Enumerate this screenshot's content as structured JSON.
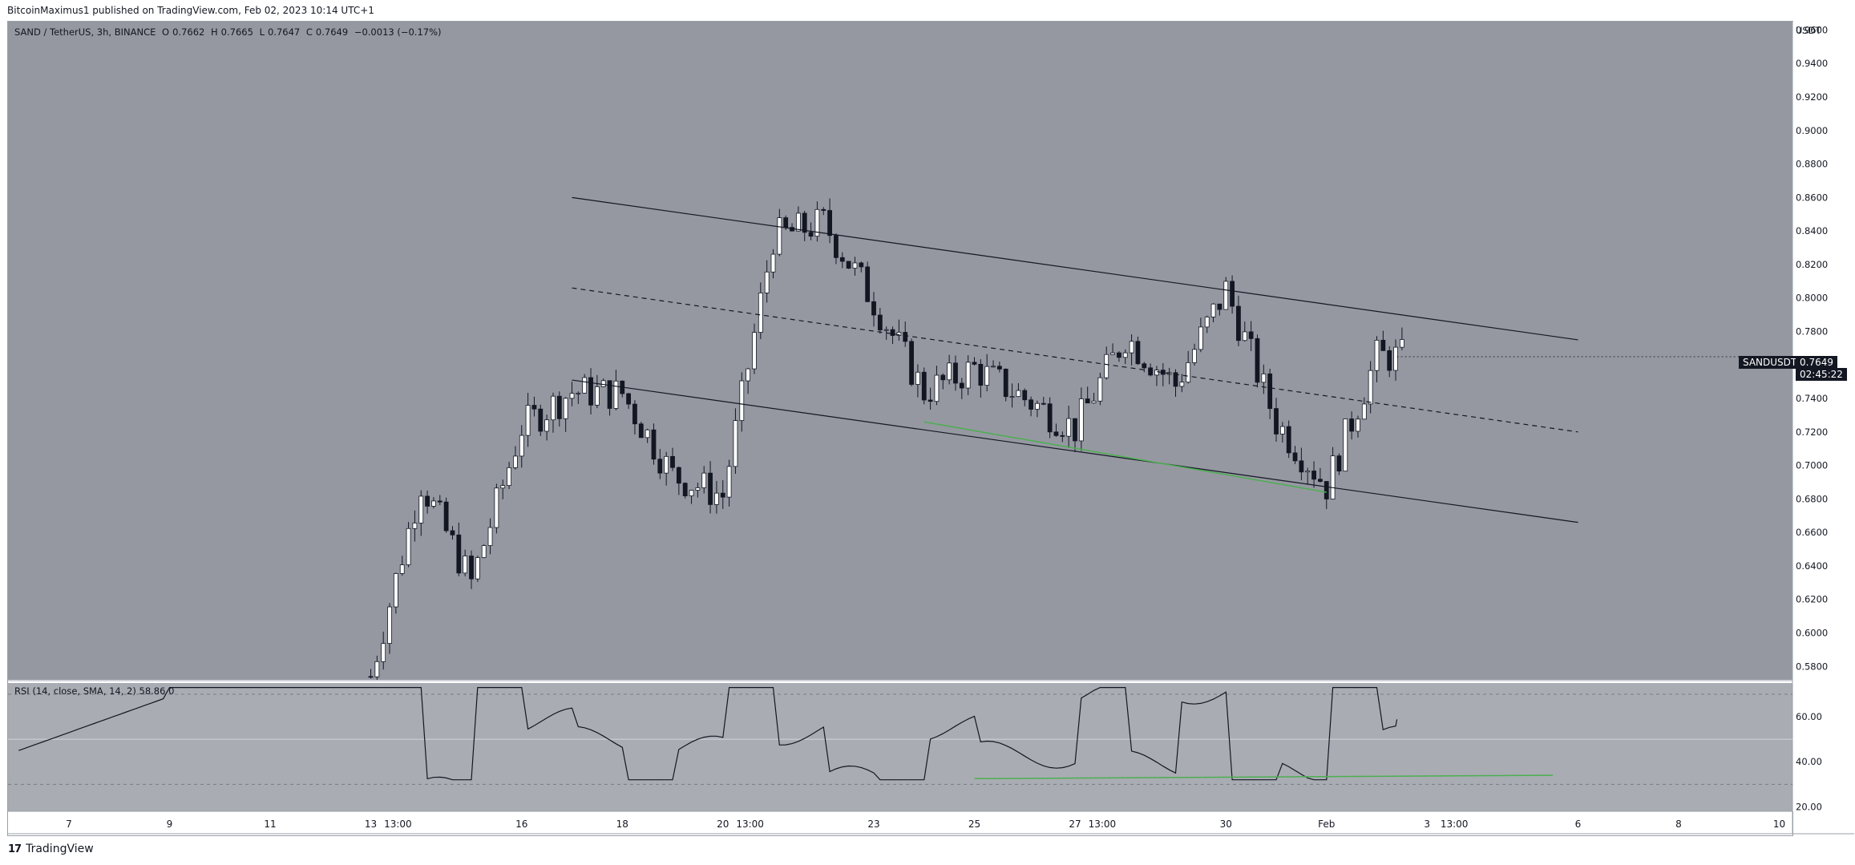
{
  "header": {
    "published": "BitcoinMaximus1 published on TradingView.com, Feb 02, 2023 10:14 UTC+1"
  },
  "symbol_line": {
    "symbol": "SAND / TetherUS, 3h, BINANCE",
    "o_label": "O",
    "o_value": "0.7662",
    "h_label": "H",
    "h_value": "0.7665",
    "l_label": "L",
    "l_value": "0.7647",
    "c_label": "C",
    "c_value": "0.7649",
    "change": "−0.0013 (−0.17%)"
  },
  "rsi": {
    "label": "RSI (14, close, SMA, 14, 2)",
    "value": "58.86",
    "extra": "0"
  },
  "price_axis": {
    "currency": "USDT",
    "ticks": [
      "0.9600",
      "0.9400",
      "0.9200",
      "0.9000",
      "0.8800",
      "0.8600",
      "0.8400",
      "0.8200",
      "0.8000",
      "0.7800",
      "0.7600",
      "0.7400",
      "0.7200",
      "0.7000",
      "0.6800",
      "0.6600",
      "0.6400",
      "0.6200",
      "0.6000",
      "0.5800"
    ],
    "symbol_tag": "SANDUSDT",
    "price_tag": "0.7649",
    "countdown": "02:45:22"
  },
  "rsi_axis": {
    "ticks": [
      "60.00",
      "40.00",
      "20.00"
    ]
  },
  "time_axis": {
    "labels": [
      "7",
      "9",
      "11",
      "13",
      "13:00",
      "16",
      "18",
      "20",
      "13:00",
      "23",
      "25",
      "27",
      "13:00",
      "30",
      "Feb",
      "3",
      "13:00",
      "6",
      "8",
      "10"
    ]
  },
  "footer": {
    "brand": "TradingView"
  },
  "colors": {
    "background": "#9598a1",
    "bull_candle": "#ffffff",
    "bear_candle": "#131722",
    "support_line": "#4caf50",
    "channel_line": "#131722"
  },
  "chart_data": {
    "type": "candlestick",
    "title": "SAND / TetherUS, 3h, BINANCE",
    "ylabel": "USDT",
    "ylim": [
      0.572,
      0.965
    ],
    "x_range_days": [
      "Jan 6 2023",
      "Feb 11 2023"
    ],
    "annotations": [
      {
        "type": "descending_channel_upper",
        "from": [
          "Jan 17 2023",
          0.86
        ],
        "to": [
          "Feb 6 2023",
          0.775
        ]
      },
      {
        "type": "descending_channel_mid",
        "from": [
          "Jan 17 2023",
          0.806
        ],
        "to": [
          "Feb 6 2023",
          0.72
        ]
      },
      {
        "type": "descending_channel_lower",
        "from": [
          "Jan 17 2023",
          0.751
        ],
        "to": [
          "Feb 6 2023",
          0.666
        ]
      },
      {
        "type": "support_green",
        "from": [
          "Jan 24 2023",
          0.726
        ],
        "to": [
          "Feb 1 2023",
          0.684
        ]
      }
    ],
    "ohlc_anchors": [
      {
        "time": "Jan 13",
        "close": 0.574
      },
      {
        "time": "Jan 14",
        "close": 0.69
      },
      {
        "time": "Jan 15",
        "close": 0.63
      },
      {
        "time": "Jan 16",
        "close": 0.723
      },
      {
        "time": "Jan 17",
        "close": 0.744
      },
      {
        "time": "Jan 18",
        "close": 0.743
      },
      {
        "time": "Jan 19",
        "close": 0.694
      },
      {
        "time": "Jan 20",
        "close": 0.682
      },
      {
        "time": "Jan 21",
        "close": 0.836
      },
      {
        "time": "Jan 22",
        "close": 0.845
      },
      {
        "time": "Jan 23",
        "close": 0.798
      },
      {
        "time": "Jan 24",
        "close": 0.744
      },
      {
        "time": "Jan 25",
        "close": 0.758
      },
      {
        "time": "Jan 26",
        "close": 0.74
      },
      {
        "time": "Jan 27",
        "close": 0.722
      },
      {
        "time": "Jan 28",
        "close": 0.777
      },
      {
        "time": "Jan 29",
        "close": 0.748
      },
      {
        "time": "Jan 30",
        "close": 0.805
      },
      {
        "time": "Jan 31",
        "close": 0.726
      },
      {
        "time": "Feb 1",
        "close": 0.688
      },
      {
        "time": "Feb 2",
        "close": 0.7649
      }
    ],
    "rsi_series": {
      "name": "RSI (14, close, SMA, 14, 2)",
      "ylim": [
        18,
        75
      ],
      "bands": [
        70,
        50,
        30
      ],
      "last_value": 58.86
    }
  }
}
